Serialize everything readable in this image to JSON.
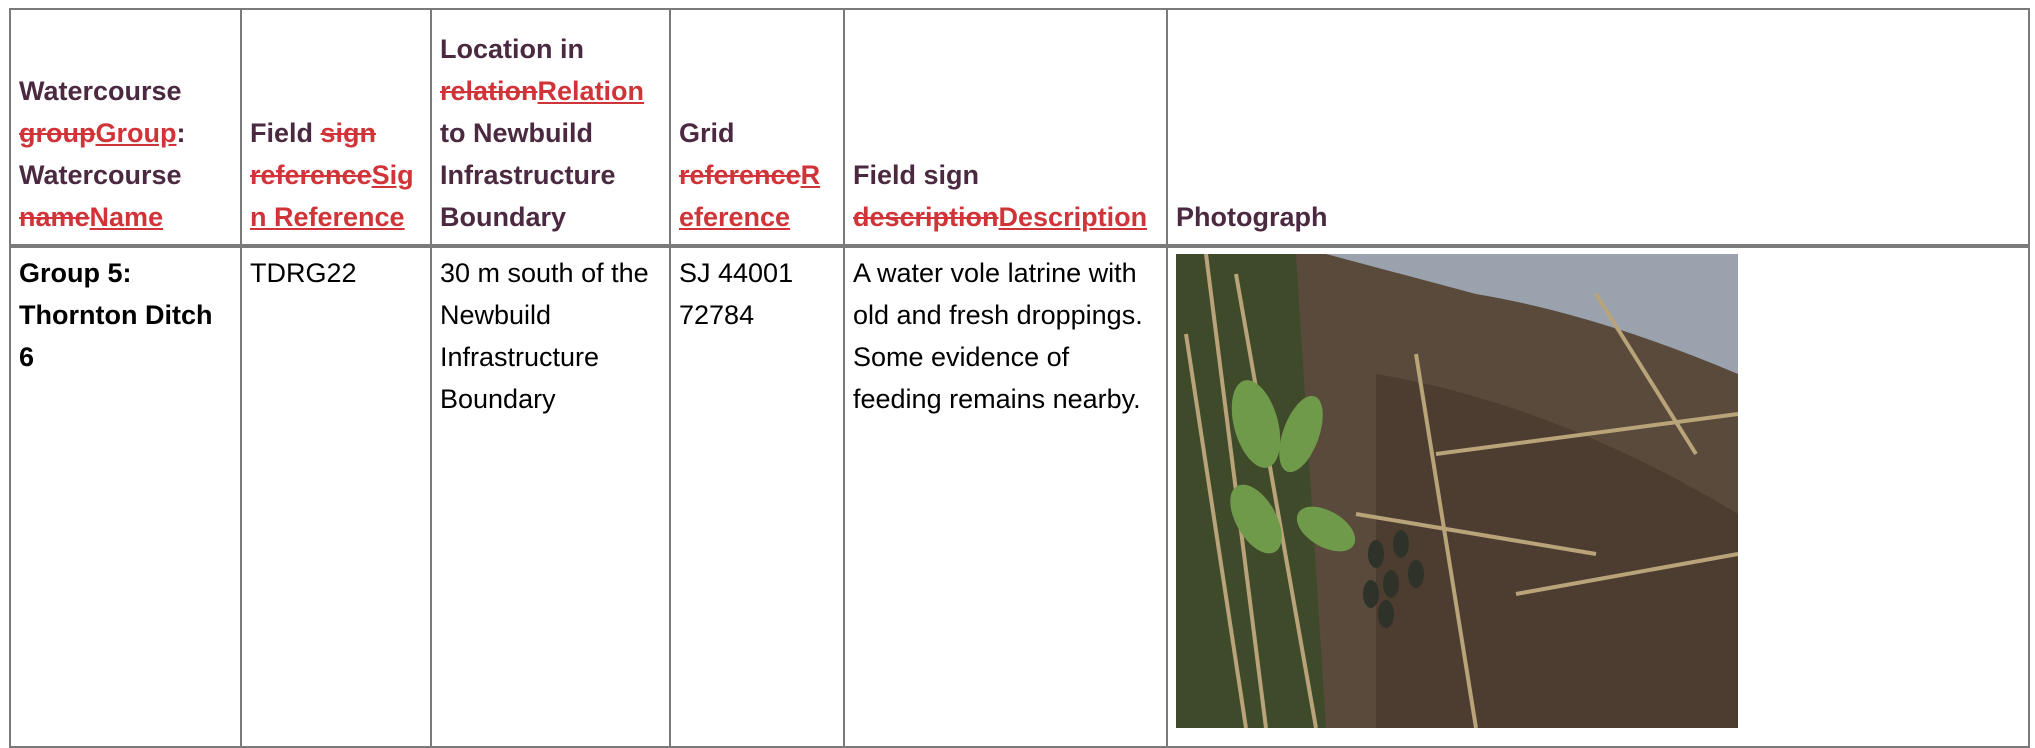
{
  "table": {
    "header": [
      [
        "Watercourse ",
        {
          "del": "group"
        },
        {
          "ins": "Group"
        },
        ": Watercourse ",
        {
          "del": "name"
        },
        {
          "ins": "Name"
        }
      ],
      [
        "Field ",
        {
          "del": "sign reference"
        },
        {
          "ins": "Sign Reference"
        }
      ],
      [
        "Location in ",
        {
          "del": "relation"
        },
        {
          "ins": "Relation"
        },
        " to Newbuild Infrastructure Boundary"
      ],
      [
        "Grid ",
        {
          "del": "reference"
        },
        {
          "ins": "Reference"
        }
      ],
      [
        "Field sign ",
        {
          "del": "description"
        },
        {
          "ins": "Description"
        }
      ],
      [
        "Photograph"
      ]
    ],
    "rows": [
      [
        "Group 5: Thornton Ditch 6",
        "TDRG22",
        "30 m south of the Newbuild Infrastructure Boundary",
        "SJ 44001 72784",
        "A water vole latrine with old and fresh droppings. Some evidence of feeding remains nearby."
      ]
    ]
  }
}
